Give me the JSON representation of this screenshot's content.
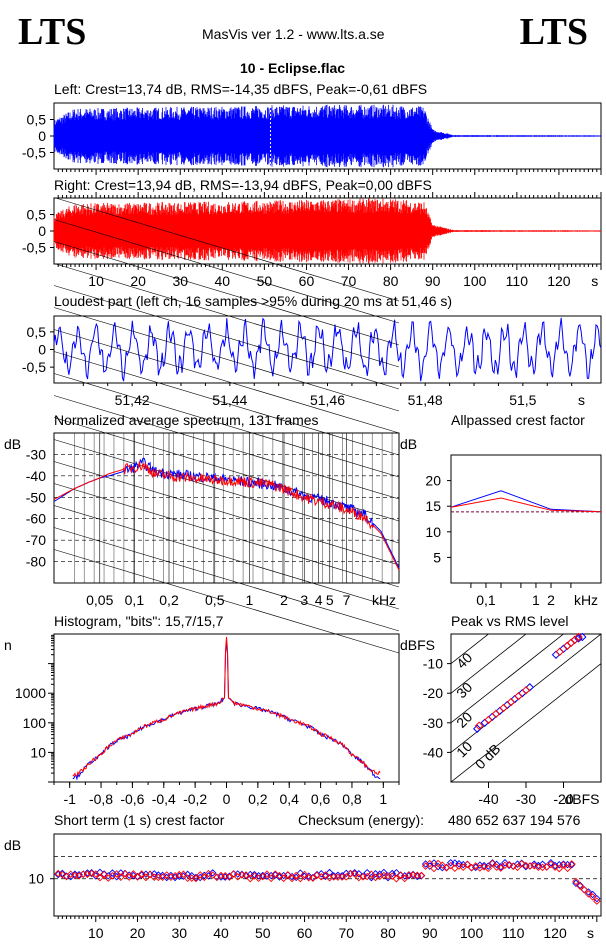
{
  "header": {
    "logo_left": "LTS",
    "logo_right": "LTS",
    "subtitle": "MasVis ver 1.2 - www.lts.a.se",
    "file_title": "10 - Eclipse.flac"
  },
  "panels": {
    "left_title": "Left: Crest=13,74 dB, RMS=-14,35 dBFS, Peak=-0,61 dBFS",
    "right_title": "Right: Crest=13,94 dB, RMS=-13,94 dBFS, Peak=0,00 dBFS",
    "loud_title": "Loudest part (left  ch, 16 samples >95% during 20 ms at 51,46 s)",
    "spectrum_title": "Normalized average spectrum, 131 frames",
    "allpass_title": "Allpassed crest factor",
    "hist_title": "Histogram, \"bits\": 15,7/15,7",
    "pvr_title": "Peak vs RMS level",
    "crest_title": "Short term (1 s) crest factor",
    "checksum_label": "Checksum (energy):",
    "checksum_value": "480 652 637 194 576"
  },
  "colors": {
    "left": "#0000ff",
    "right": "#ff0000",
    "axis": "#000000",
    "bg": "#ffffff"
  },
  "chart_data": [
    {
      "type": "area",
      "id": "left_waveform",
      "title": "Left: Crest=13,74 dB, RMS=-14,35 dBFS, Peak=-0,61 dBFS",
      "yticks": [
        "0.5",
        "0",
        "-0.5"
      ],
      "ylim": [
        -1,
        1
      ],
      "xlim": [
        0,
        130
      ],
      "series": [
        {
          "name": "Left",
          "envelope_x": [
            0,
            5,
            10,
            40,
            60,
            80,
            88,
            90,
            95,
            130
          ],
          "envelope_amp": [
            0.5,
            0.85,
            0.85,
            0.9,
            0.95,
            0.95,
            0.9,
            0.2,
            0.03,
            0.02
          ]
        }
      ]
    },
    {
      "type": "area",
      "id": "right_waveform",
      "title": "Right: Crest=13,94 dB, RMS=-13,94 dBFS, Peak=0,00 dBFS",
      "yticks": [
        "0.5",
        "0",
        "-0.5"
      ],
      "xticks": [
        "10",
        "20",
        "30",
        "40",
        "50",
        "60",
        "70",
        "80",
        "90",
        "100",
        "110",
        "120",
        "s"
      ],
      "ylim": [
        -1,
        1
      ],
      "xlim": [
        0,
        130
      ],
      "series": [
        {
          "name": "Right",
          "envelope_x": [
            0,
            5,
            10,
            40,
            60,
            80,
            88,
            90,
            95,
            130
          ],
          "envelope_amp": [
            0.5,
            0.85,
            0.85,
            0.9,
            0.95,
            1.0,
            0.9,
            0.2,
            0.03,
            0.02
          ]
        }
      ]
    },
    {
      "type": "line",
      "id": "loudest_part",
      "title": "Loudest part (left  ch, 16 samples >95% during 20 ms at 51,46 s)",
      "yticks": [
        "0.5",
        "0",
        "-0.5"
      ],
      "xticks": [
        "51,42",
        "51,44",
        "51,46",
        "51,48",
        "51,5",
        "s"
      ],
      "xlim": [
        51.404,
        51.516
      ],
      "ylim": [
        -0.95,
        0.95
      ]
    },
    {
      "type": "line",
      "id": "spectrum",
      "title": "Normalized average spectrum, 131 frames",
      "ylabel": "dB",
      "yticks": [
        "-30",
        "-40",
        "-50",
        "-60",
        "-70",
        "-80"
      ],
      "xticks": [
        "0,05",
        "0,1",
        "0,2",
        "0,5",
        "1",
        "2",
        "3",
        "4",
        "5",
        "7",
        "kHz"
      ],
      "xlim_khz": [
        0.02,
        20
      ],
      "ylim": [
        -90,
        -20
      ],
      "series": [
        {
          "name": "Left",
          "x_khz": [
            0.02,
            0.03,
            0.04,
            0.05,
            0.06,
            0.08,
            0.1,
            0.12,
            0.15,
            0.2,
            0.3,
            0.5,
            0.7,
            1,
            1.5,
            2,
            3,
            4,
            5,
            7,
            10,
            14,
            20
          ],
          "y": [
            -52,
            -46,
            -43,
            -41,
            -40,
            -38,
            -36,
            -34,
            -38,
            -39,
            -40,
            -41,
            -42,
            -43,
            -44,
            -46,
            -49,
            -51,
            -52,
            -55,
            -58,
            -66,
            -83
          ]
        },
        {
          "name": "Right",
          "x_khz": [
            0.02,
            0.03,
            0.04,
            0.05,
            0.06,
            0.08,
            0.1,
            0.12,
            0.15,
            0.2,
            0.3,
            0.5,
            0.7,
            1,
            1.5,
            2,
            3,
            4,
            5,
            7,
            10,
            14,
            20
          ],
          "y": [
            -51,
            -46,
            -43,
            -41,
            -39,
            -37,
            -36,
            -35,
            -39,
            -40,
            -41,
            -42,
            -42,
            -43,
            -44,
            -46,
            -50,
            -52,
            -53,
            -56,
            -59,
            -67,
            -84
          ]
        }
      ]
    },
    {
      "type": "line",
      "id": "allpassed_crest",
      "title": "Allpassed crest factor",
      "ylabel": "dB",
      "yticks": [
        "20",
        "15",
        "10",
        "5"
      ],
      "xticks": [
        "0,1",
        "1",
        "2",
        "kHz"
      ],
      "ylim": [
        0,
        25
      ],
      "series": [
        {
          "name": "Left",
          "x_khz": [
            0.02,
            0.2,
            2,
            20
          ],
          "y": [
            14.8,
            18.0,
            14.4,
            13.9
          ]
        },
        {
          "name": "Right",
          "x_khz": [
            0.02,
            0.2,
            2,
            20
          ],
          "y": [
            14.8,
            16.6,
            14.2,
            13.9
          ]
        }
      ],
      "reference_db": 13.9
    },
    {
      "type": "line",
      "id": "histogram",
      "title": "Histogram, \"bits\": 15,7/15,7",
      "ylabel": "n",
      "yticks": [
        "1000",
        "100",
        "10"
      ],
      "xticks": [
        "-1",
        "-0,8",
        "-0,6",
        "-0,4",
        "-0,2",
        "0",
        "0,2",
        "0,4",
        "0,6",
        "0,8",
        "1"
      ],
      "xlim": [
        -1.1,
        1.1
      ],
      "ylim_log": [
        1,
        100000
      ],
      "series": [
        {
          "name": "Left",
          "x": [
            -0.95,
            -0.9,
            -0.8,
            -0.6,
            -0.4,
            -0.2,
            -0.05,
            -0.01,
            0,
            0.01,
            0.05,
            0.2,
            0.4,
            0.6,
            0.8,
            0.9,
            0.95
          ],
          "y": [
            1.5,
            3,
            8,
            40,
            130,
            300,
            450,
            700,
            60000,
            700,
            450,
            300,
            130,
            40,
            8,
            3,
            1.5
          ]
        },
        {
          "name": "Right",
          "x": [
            -0.95,
            -0.9,
            -0.8,
            -0.6,
            -0.4,
            -0.2,
            -0.05,
            -0.01,
            0,
            0.01,
            0.05,
            0.2,
            0.4,
            0.6,
            0.8,
            0.9,
            0.95
          ],
          "y": [
            1.8,
            3,
            8,
            42,
            130,
            300,
            460,
            720,
            80000,
            720,
            460,
            300,
            130,
            42,
            8,
            3,
            2
          ]
        }
      ]
    },
    {
      "type": "scatter",
      "id": "peak_vs_rms",
      "title": "Peak vs RMS level",
      "ylabel": "dBFS",
      "xlabel": "dBFS",
      "yticks": [
        "-10",
        "-20",
        "-30",
        "-40"
      ],
      "xticks": [
        "-40",
        "-30",
        "-20"
      ],
      "diagonal_labels": [
        "40",
        "30",
        "20",
        "10",
        "0 dB"
      ],
      "xlim": [
        -50,
        -10
      ],
      "ylim": [
        -50,
        0
      ],
      "series": [
        {
          "name": "Left",
          "x": [
            -43,
            -41,
            -39,
            -37,
            -35,
            -33,
            -31,
            -29,
            -22,
            -20,
            -19,
            -18,
            -17,
            -16,
            -15
          ],
          "y": [
            -32,
            -30,
            -28,
            -26,
            -24,
            -22,
            -20,
            -18,
            -7,
            -5,
            -4,
            -3,
            -2,
            -1.5,
            -1
          ]
        },
        {
          "name": "Right",
          "x": [
            -42.5,
            -40,
            -38,
            -36,
            -34,
            -32,
            -30,
            -21,
            -19,
            -18,
            -17,
            -16
          ],
          "y": [
            -31,
            -29,
            -27,
            -25,
            -23,
            -21,
            -19,
            -6,
            -4,
            -3,
            -2,
            -1
          ]
        }
      ]
    },
    {
      "type": "scatter",
      "id": "short_term_crest",
      "title": "Short term (1 s) crest factor",
      "ylabel": "dB",
      "yticks": [
        "10"
      ],
      "xticks": [
        "10",
        "20",
        "30",
        "40",
        "50",
        "60",
        "70",
        "80",
        "90",
        "100",
        "110",
        "120",
        "s"
      ],
      "xlim": [
        0,
        131
      ],
      "ylim": [
        0,
        22
      ],
      "reference_lines": [
        10,
        16
      ],
      "series": [
        {
          "name": "Left",
          "x_range": [
            1,
            130
          ],
          "plateau": [
            [
              1,
              88,
              11.0
            ],
            [
              89,
              124,
              13.6
            ]
          ]
        },
        {
          "name": "Right",
          "x_range": [
            1,
            130
          ],
          "plateau": [
            [
              1,
              88,
              10.7
            ],
            [
              89,
              124,
              13.4
            ]
          ]
        }
      ]
    }
  ]
}
